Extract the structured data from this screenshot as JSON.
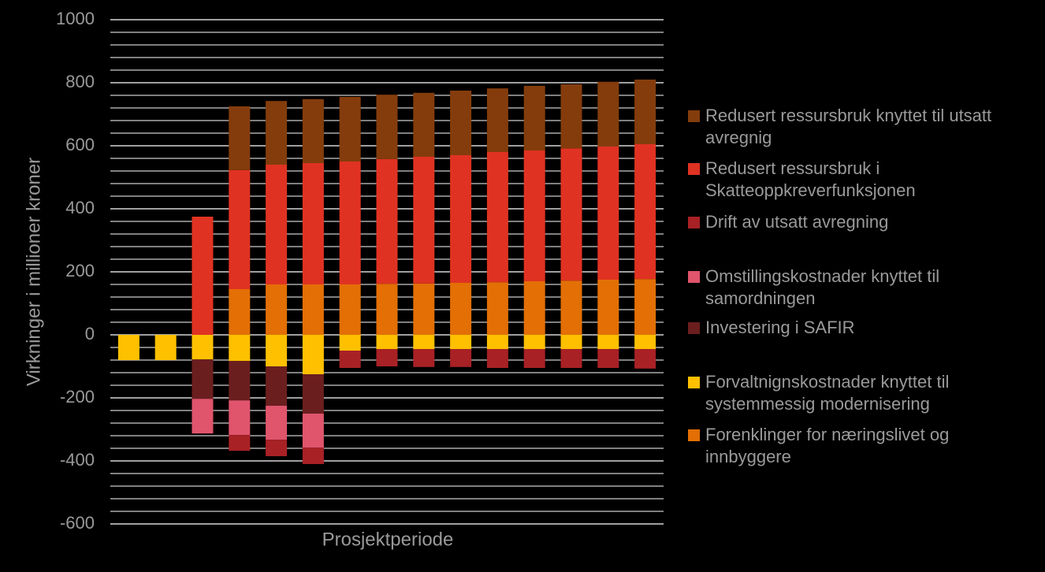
{
  "chart_data": {
    "type": "stacked_bar",
    "y_label": "Virkninger i millioner kroner",
    "x_label": "Prosjektperiode",
    "categories": [
      null,
      null,
      null,
      null,
      null,
      null,
      null,
      null,
      null,
      null,
      null,
      null,
      null,
      null,
      null
    ],
    "ylim": [
      -600,
      1000
    ],
    "yticks": [
      -600,
      -400,
      -200,
      0,
      200,
      400,
      600,
      800,
      1000
    ],
    "minor_yticks": [
      -560,
      -520,
      -480,
      -440,
      -360,
      -320,
      -280,
      -240,
      -160,
      -120,
      -80,
      -40,
      40,
      80,
      120,
      160,
      240,
      280,
      320,
      360,
      440,
      480,
      520,
      560,
      640,
      680,
      720,
      760,
      840,
      880,
      920,
      960
    ],
    "grid": true,
    "legend": "right",
    "series": [
      {
        "name": "Redusert ressursbruk knyttet til utsatt avregnig",
        "color": "#843c0c",
        "values": [
          0,
          0,
          0,
          202,
          202,
          203,
          205,
          204,
          203,
          205,
          202,
          205,
          203,
          205,
          205
        ]
      },
      {
        "name": "Redusert ressursbruk i Skatteoppkreverfunksjonen",
        "color": "#e03222",
        "values": [
          0,
          0,
          375,
          378,
          380,
          385,
          390,
          396,
          402,
          405,
          413,
          415,
          420,
          423,
          428
        ]
      },
      {
        "name": "Drift av utsatt avregning",
        "color": "#a82125",
        "values": [
          0,
          0,
          0,
          -50,
          -52,
          -52,
          -55,
          -55,
          -57,
          -57,
          -60,
          -60,
          -60,
          -60,
          -62
        ]
      },
      {
        "name": "Omstillingskostnader knyttet til samordningen",
        "color": "#e0546c",
        "values": [
          0,
          0,
          -110,
          -110,
          -108,
          -108,
          0,
          0,
          0,
          0,
          0,
          0,
          0,
          0,
          0
        ]
      },
      {
        "name": "Investering i SAFIR",
        "color": "#6b1e1e",
        "values": [
          0,
          0,
          -125,
          -125,
          -125,
          -125,
          0,
          0,
          0,
          0,
          0,
          0,
          0,
          0,
          0
        ]
      },
      {
        "name": "Forvaltnignskostnader knyttet til systemmessig modernisering",
        "color": "#ffc000",
        "values": [
          -80,
          -80,
          -78,
          -83,
          -100,
          -125,
          -50,
          -45,
          -45,
          -45,
          -45,
          -45,
          -45,
          -45,
          -45
        ]
      },
      {
        "name": "Forenklinger for næringslivet og innbyggere",
        "color": "#e36f05",
        "values": [
          0,
          0,
          0,
          145,
          160,
          160,
          160,
          162,
          163,
          165,
          167,
          170,
          172,
          175,
          177
        ]
      }
    ]
  }
}
